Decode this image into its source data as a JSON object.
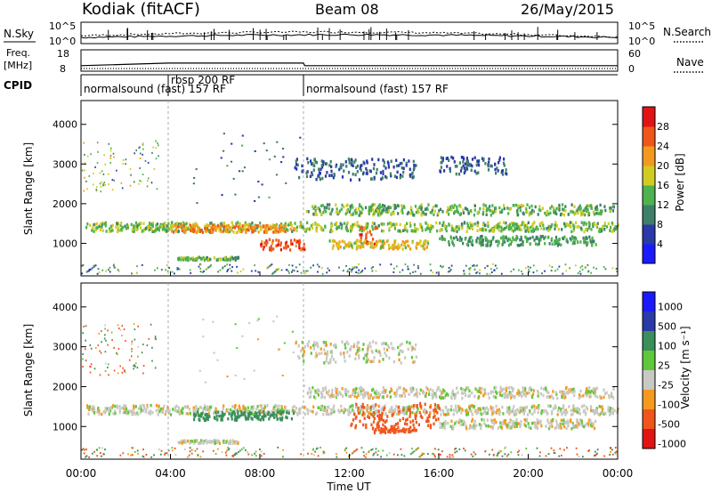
{
  "header": {
    "station": "Kodiak (fitACF)",
    "beam": "Beam 08",
    "date": "26/May/2015"
  },
  "left_labels": {
    "nsky": "N.Sky",
    "freq": "Freq.",
    "freq_unit": "[MHz]",
    "cpid": "CPID"
  },
  "right_labels": {
    "nsearch": "N.Search",
    "nave": "Nave"
  },
  "cpid_segments": [
    {
      "label": "normalsound (fast) 157 RF",
      "start_h": 0,
      "end_h": 3.9
    },
    {
      "label": "rbsp 200 RF",
      "start_h": 3.9,
      "end_h": 9.95
    },
    {
      "label": "normalsound (fast) 157 RF",
      "start_h": 9.95,
      "end_h": 24
    }
  ],
  "chart_data": [
    {
      "type": "line",
      "panel": "noise",
      "left_ticks": [
        "10^5",
        "10^0"
      ],
      "right_ticks": [
        "10^5",
        "10^0"
      ],
      "xlim": [
        0,
        24
      ]
    },
    {
      "type": "line",
      "panel": "frequency",
      "left_ticks": [
        "18",
        "8"
      ],
      "right_ticks": [
        "60",
        "0"
      ],
      "frequency_mhz": [
        [
          0,
          10.6
        ],
        [
          3.9,
          11.8
        ],
        [
          9.95,
          11.8
        ],
        [
          10,
          10.6
        ],
        [
          24,
          10.6
        ]
      ],
      "xlim": [
        0,
        24
      ]
    },
    {
      "type": "heatmap",
      "panel": "power",
      "ylabel": "Slant Range [km]",
      "yticks": [
        1000,
        2000,
        3000,
        4000
      ],
      "ylim": [
        180,
        4600
      ],
      "colorbar_label": "Power [dB]",
      "colorbar_ticks": [
        4,
        8,
        12,
        16,
        20,
        24,
        28
      ],
      "colorbar_range": [
        0,
        32
      ],
      "bands": [
        {
          "t0": 0.2,
          "t1": 24,
          "r_center": 1450,
          "r_halfwidth": 130,
          "value": 15
        },
        {
          "t0": 4.0,
          "t1": 9.5,
          "r_center": 1400,
          "r_halfwidth": 100,
          "value": 23
        },
        {
          "t0": 8.0,
          "t1": 10.0,
          "r_center": 1000,
          "r_halfwidth": 150,
          "value": 27
        },
        {
          "t0": 12.3,
          "t1": 13.2,
          "r_center": 1250,
          "r_halfwidth": 280,
          "value": 26
        },
        {
          "t0": 10.0,
          "t1": 23.8,
          "r_center": 1880,
          "r_halfwidth": 150,
          "value": 14
        },
        {
          "t0": 16.0,
          "t1": 23.0,
          "r_center": 1100,
          "r_halfwidth": 130,
          "value": 12
        },
        {
          "t0": 11.0,
          "t1": 15.5,
          "r_center": 1000,
          "r_halfwidth": 120,
          "value": 19
        },
        {
          "t0": 5.0,
          "t1": 10.0,
          "r_center": 2900,
          "r_halfwidth": 900,
          "value": 9
        },
        {
          "t0": 9.5,
          "t1": 15.0,
          "r_center": 2900,
          "r_halfwidth": 300,
          "value": 8
        },
        {
          "t0": 16.0,
          "t1": 19.0,
          "r_center": 3000,
          "r_halfwidth": 250,
          "value": 8
        },
        {
          "t0": 4.3,
          "t1": 7.0,
          "r_center": 650,
          "r_halfwidth": 40,
          "value": 14
        }
      ]
    },
    {
      "type": "heatmap",
      "panel": "velocity",
      "ylabel": "Slant Range [km]",
      "yticks": [
        1000,
        2000,
        3000,
        4000
      ],
      "ylim": [
        180,
        4600
      ],
      "xlabel": "Time UT",
      "xticks": [
        "00:00",
        "04:00",
        "08:00",
        "12:00",
        "16:00",
        "20:00",
        "00:00"
      ],
      "xlim": [
        0,
        24
      ],
      "colorbar_label": "Velocity [m s⁻¹]",
      "colorbar_ticks": [
        "1000",
        "500",
        "100",
        "25",
        "-25",
        "-100",
        "-500",
        "-1000"
      ],
      "bands": [
        {
          "t0": 0.2,
          "t1": 24,
          "r_center": 1450,
          "r_halfwidth": 130,
          "value": 0
        },
        {
          "t0": 5.0,
          "t1": 9.5,
          "r_center": 1300,
          "r_halfwidth": 120,
          "value": 200
        },
        {
          "t0": 12.0,
          "t1": 16.0,
          "r_center": 1300,
          "r_halfwidth": 350,
          "value": -300
        },
        {
          "t0": 10.0,
          "t1": 23.8,
          "r_center": 1880,
          "r_halfwidth": 150,
          "value": 0
        },
        {
          "t0": 16.0,
          "t1": 23.0,
          "r_center": 1100,
          "r_halfwidth": 130,
          "value": 0
        },
        {
          "t0": 13.0,
          "t1": 15.0,
          "r_center": 950,
          "r_halfwidth": 80,
          "value": -150
        },
        {
          "t0": 5.0,
          "t1": 10.0,
          "r_center": 2900,
          "r_halfwidth": 900,
          "value": 0
        },
        {
          "t0": 9.5,
          "t1": 15.0,
          "r_center": 2900,
          "r_halfwidth": 300,
          "value": 0
        },
        {
          "t0": 4.3,
          "t1": 7.0,
          "r_center": 650,
          "r_halfwidth": 40,
          "value": 0
        }
      ]
    }
  ]
}
